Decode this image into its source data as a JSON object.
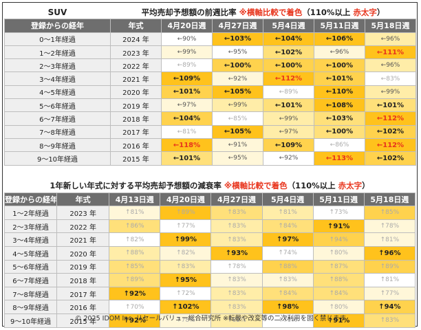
{
  "title_left": "SUV",
  "section1": {
    "caption": "平均売却予想額の前週比率",
    "note_prefix": "※",
    "note_red": "横軸比較で着色",
    "note_suffix": "（110%以上 ",
    "note_red2": "赤太字",
    "note_end": "）",
    "headers": [
      "登録からの経年",
      "年式",
      "4月20日週",
      "4月27日週",
      "5月4日週",
      "5月11日週",
      "5月18日週"
    ],
    "rows": [
      {
        "age": "0～1年経過",
        "year": "2024 年",
        "cells": [
          {
            "v": "←90%",
            "c": 0,
            "s": "arr"
          },
          {
            "v": "←103%",
            "c": 5,
            "s": "b"
          },
          {
            "v": "←104%",
            "c": 5,
            "s": "b"
          },
          {
            "v": "←106%",
            "c": 5,
            "s": "b"
          },
          {
            "v": "←96%",
            "c": 2,
            "s": "arr"
          }
        ]
      },
      {
        "age": "1～2年経過",
        "year": "2023 年",
        "cells": [
          {
            "v": "←99%",
            "c": 1,
            "s": "arr"
          },
          {
            "v": "←95%",
            "c": 0,
            "s": "arr"
          },
          {
            "v": "←102%",
            "c": 3,
            "s": "b"
          },
          {
            "v": "←96%",
            "c": 1,
            "s": "arr"
          },
          {
            "v": "←111%",
            "c": 5,
            "s": "hot"
          }
        ]
      },
      {
        "age": "2～3年経過",
        "year": "2022 年",
        "cells": [
          {
            "v": "←89%",
            "c": 0,
            "s": "up"
          },
          {
            "v": "←100%",
            "c": 4,
            "s": "b"
          },
          {
            "v": "←100%",
            "c": 4,
            "s": "b"
          },
          {
            "v": "←100%",
            "c": 4,
            "s": "b"
          },
          {
            "v": "←96%",
            "c": 2,
            "s": "arr"
          }
        ]
      },
      {
        "age": "3～4年経過",
        "year": "2021 年",
        "cells": [
          {
            "v": "←109%",
            "c": 5,
            "s": "b"
          },
          {
            "v": "←92%",
            "c": 1,
            "s": "arr"
          },
          {
            "v": "←112%",
            "c": 5,
            "s": "hot"
          },
          {
            "v": "←101%",
            "c": 4,
            "s": "b"
          },
          {
            "v": "←83%",
            "c": 0,
            "s": "up"
          }
        ]
      },
      {
        "age": "4～5年経過",
        "year": "2020 年",
        "cells": [
          {
            "v": "←101%",
            "c": 4,
            "s": "b"
          },
          {
            "v": "←105%",
            "c": 5,
            "s": "b"
          },
          {
            "v": "←89%",
            "c": 0,
            "s": "up"
          },
          {
            "v": "←110%",
            "c": 5,
            "s": "b"
          },
          {
            "v": "←99%",
            "c": 2,
            "s": "arr"
          }
        ]
      },
      {
        "age": "5～6年経過",
        "year": "2019 年",
        "cells": [
          {
            "v": "←97%",
            "c": 1,
            "s": "arr"
          },
          {
            "v": "←99%",
            "c": 2,
            "s": "arr"
          },
          {
            "v": "←101%",
            "c": 3,
            "s": "b"
          },
          {
            "v": "←108%",
            "c": 5,
            "s": "b"
          },
          {
            "v": "←101%",
            "c": 3,
            "s": "b"
          }
        ]
      },
      {
        "age": "6～7年経過",
        "year": "2018 年",
        "cells": [
          {
            "v": "←104%",
            "c": 4,
            "s": "b"
          },
          {
            "v": "←85%",
            "c": 0,
            "s": "up"
          },
          {
            "v": "←99%",
            "c": 2,
            "s": "arr"
          },
          {
            "v": "←103%",
            "c": 3,
            "s": "b"
          },
          {
            "v": "←112%",
            "c": 5,
            "s": "hot"
          }
        ]
      },
      {
        "age": "7～8年経過",
        "year": "2017 年",
        "cells": [
          {
            "v": "←81%",
            "c": 0,
            "s": "up"
          },
          {
            "v": "←105%",
            "c": 5,
            "s": "b"
          },
          {
            "v": "←97%",
            "c": 2,
            "s": "arr"
          },
          {
            "v": "←100%",
            "c": 3,
            "s": "b"
          },
          {
            "v": "←102%",
            "c": 4,
            "s": "b"
          }
        ]
      },
      {
        "age": "8～9年経過",
        "year": "2016 年",
        "cells": [
          {
            "v": "←118%",
            "c": 5,
            "s": "hot"
          },
          {
            "v": "←91%",
            "c": 1,
            "s": "arr"
          },
          {
            "v": "←109%",
            "c": 4,
            "s": "b"
          },
          {
            "v": "←86%",
            "c": 0,
            "s": "up"
          },
          {
            "v": "←112%",
            "c": 5,
            "s": "hot"
          }
        ]
      },
      {
        "age": "9～10年経過",
        "year": "2015 年",
        "cells": [
          {
            "v": "←101%",
            "c": 3,
            "s": "b"
          },
          {
            "v": "←95%",
            "c": 1,
            "s": "arr"
          },
          {
            "v": "←92%",
            "c": 0,
            "s": "arr"
          },
          {
            "v": "←113%",
            "c": 5,
            "s": "hot"
          },
          {
            "v": "←102%",
            "c": 4,
            "s": "b"
          }
        ]
      }
    ]
  },
  "section2": {
    "caption": "1年新しい年式に対する平均売却予想額の減衰率",
    "note_prefix": "※",
    "note_red": "横軸比較で着色",
    "note_suffix": "（110%以上 ",
    "note_red2": "赤太字",
    "note_end": "）",
    "headers": [
      "登録からの経年",
      "年式",
      "4月13日週",
      "4月20日週",
      "4月27日週",
      "5月4日週",
      "5月11日週",
      "5月18日週"
    ],
    "rows": [
      {
        "age": "1～2年経過",
        "year": "2023 年",
        "cells": [
          {
            "v": "↑81%",
            "c": 1,
            "s": "up"
          },
          {
            "v": "↑89%",
            "c": 5,
            "s": "up"
          },
          {
            "v": "↑83%",
            "c": 3,
            "s": "up"
          },
          {
            "v": "↑81%",
            "c": 2,
            "s": "up"
          },
          {
            "v": "↑73%",
            "c": 0,
            "s": "up"
          },
          {
            "v": "↑85%",
            "c": 4,
            "s": "up"
          }
        ]
      },
      {
        "age": "2～3年経過",
        "year": "2022 年",
        "cells": [
          {
            "v": "↑86%",
            "c": 3,
            "s": "up"
          },
          {
            "v": "↑77%",
            "c": 0,
            "s": "up"
          },
          {
            "v": "↑83%",
            "c": 2,
            "s": "up"
          },
          {
            "v": "↑84%",
            "c": 3,
            "s": "up"
          },
          {
            "v": "↑91%",
            "c": 5,
            "s": "b"
          },
          {
            "v": "↑78%",
            "c": 1,
            "s": "up"
          }
        ]
      },
      {
        "age": "3～4年経過",
        "year": "2021 年",
        "cells": [
          {
            "v": "↑82%",
            "c": 0,
            "s": "up"
          },
          {
            "v": "↑99%",
            "c": 5,
            "s": "b"
          },
          {
            "v": "↑83%",
            "c": 2,
            "s": "up"
          },
          {
            "v": "↑97%",
            "c": 5,
            "s": "b"
          },
          {
            "v": "↑94%",
            "c": 4,
            "s": "up"
          },
          {
            "v": "↑81%",
            "c": 1,
            "s": "up"
          }
        ]
      },
      {
        "age": "4～5年経過",
        "year": "2020 年",
        "cells": [
          {
            "v": "↑88%",
            "c": 2,
            "s": "up"
          },
          {
            "v": "↑82%",
            "c": 1,
            "s": "up"
          },
          {
            "v": "↑93%",
            "c": 5,
            "s": "b"
          },
          {
            "v": "↑74%",
            "c": 0,
            "s": "up"
          },
          {
            "v": "↑80%",
            "c": 1,
            "s": "up"
          },
          {
            "v": "↑96%",
            "c": 5,
            "s": "b"
          }
        ]
      },
      {
        "age": "5～6年経過",
        "year": "2019 年",
        "cells": [
          {
            "v": "↑85%",
            "c": 3,
            "s": "up"
          },
          {
            "v": "↑83%",
            "c": 2,
            "s": "up"
          },
          {
            "v": "↑78%",
            "c": 0,
            "s": "up"
          },
          {
            "v": "↑88%",
            "c": 4,
            "s": "up"
          },
          {
            "v": "↑87%",
            "c": 3,
            "s": "up"
          },
          {
            "v": "↑89%",
            "c": 4,
            "s": "up"
          }
        ]
      },
      {
        "age": "6～7年経過",
        "year": "2018 年",
        "cells": [
          {
            "v": "↑89%",
            "c": 3,
            "s": "up"
          },
          {
            "v": "↑95%",
            "c": 5,
            "s": "b"
          },
          {
            "v": "↑83%",
            "c": 1,
            "s": "up"
          },
          {
            "v": "↑83%",
            "c": 1,
            "s": "up"
          },
          {
            "v": "↑88%",
            "c": 3,
            "s": "up"
          },
          {
            "v": "↑81%",
            "c": 0,
            "s": "up"
          }
        ]
      },
      {
        "age": "7～8年経過",
        "year": "2017 年",
        "cells": [
          {
            "v": "↑92%",
            "c": 5,
            "s": "b"
          },
          {
            "v": "↑72%",
            "c": 0,
            "s": "up"
          },
          {
            "v": "↑83%",
            "c": 2,
            "s": "up"
          },
          {
            "v": "↑84%",
            "c": 3,
            "s": "up"
          },
          {
            "v": "↑84%",
            "c": 3,
            "s": "up"
          },
          {
            "v": "↑77%",
            "c": 1,
            "s": "up"
          }
        ]
      },
      {
        "age": "8～9年経過",
        "year": "2016 年",
        "cells": [
          {
            "v": "↑70%",
            "c": 0,
            "s": "up"
          },
          {
            "v": "↑102%",
            "c": 5,
            "s": "b"
          },
          {
            "v": "↑83%",
            "c": 2,
            "s": "up"
          },
          {
            "v": "↑98%",
            "c": 5,
            "s": "b"
          },
          {
            "v": "↑80%",
            "c": 1,
            "s": "up"
          },
          {
            "v": "↑94%",
            "c": 4,
            "s": "b"
          }
        ]
      },
      {
        "age": "9～10年経過",
        "year": "2015 年",
        "cells": [
          {
            "v": "↑92%",
            "c": 5,
            "s": "b"
          },
          {
            "v": "↑78%",
            "c": 1,
            "s": "up"
          },
          {
            "v": "↑82%",
            "c": 2,
            "s": "up"
          },
          {
            "v": "↑70%",
            "c": 0,
            "s": "up"
          },
          {
            "v": "↑91%",
            "c": 5,
            "s": "b"
          },
          {
            "v": "↑83%",
            "c": 3,
            "s": "up"
          }
        ]
      }
    ]
  },
  "footer": "© 2025 IDOM Inc. リセールバリュー総合研究所 ※転載や改変等の二次利用を固く禁じます"
}
